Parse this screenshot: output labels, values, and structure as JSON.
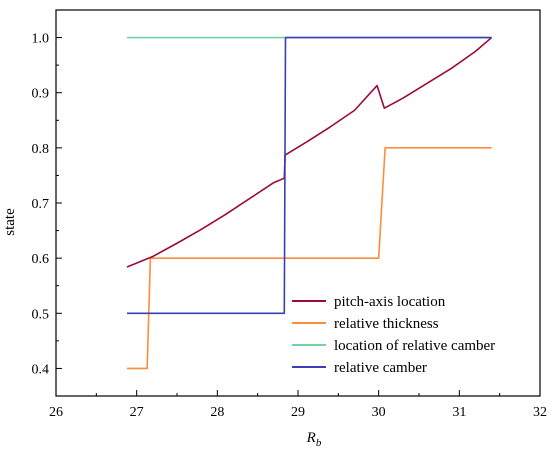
{
  "chart_data": {
    "type": "line",
    "xlabel": "R",
    "xlabel_sub": "b",
    "ylabel": "state",
    "xlim": [
      26,
      32
    ],
    "ylim": [
      0.35,
      1.05
    ],
    "xticks": [
      "26",
      "27",
      "28",
      "29",
      "30",
      "31",
      "32"
    ],
    "yticks": [
      "0.4",
      "0.5",
      "0.6",
      "0.7",
      "0.8",
      "0.9",
      "1.0"
    ],
    "grid": false,
    "legend_position": "bottom-right",
    "series": [
      {
        "name": "pitch-axis location",
        "color": "#9b0a3d",
        "x": [
          26.88,
          27.2,
          27.5,
          27.8,
          28.1,
          28.4,
          28.7,
          28.83,
          28.84,
          29.1,
          29.4,
          29.7,
          29.98,
          30.07,
          30.3,
          30.6,
          30.9,
          31.2,
          31.4
        ],
        "y": [
          0.584,
          0.603,
          0.627,
          0.652,
          0.679,
          0.708,
          0.737,
          0.745,
          0.787,
          0.81,
          0.838,
          0.868,
          0.913,
          0.872,
          0.89,
          0.917,
          0.944,
          0.975,
          1.0
        ]
      },
      {
        "name": "relative thickness",
        "color": "#ff8c3a",
        "x": [
          26.88,
          27.13,
          27.17,
          30.0,
          30.08,
          31.4
        ],
        "y": [
          0.4,
          0.4,
          0.6,
          0.6,
          0.8,
          0.8
        ]
      },
      {
        "name": "location of relative camber",
        "color": "#6fd5a3",
        "x": [
          26.88,
          31.4
        ],
        "y": [
          1.0,
          1.0
        ]
      },
      {
        "name": "relative camber",
        "color": "#3b3fb2",
        "x": [
          26.88,
          28.83,
          28.845,
          31.4
        ],
        "y": [
          0.5,
          0.5,
          1.0,
          1.0
        ]
      }
    ]
  }
}
